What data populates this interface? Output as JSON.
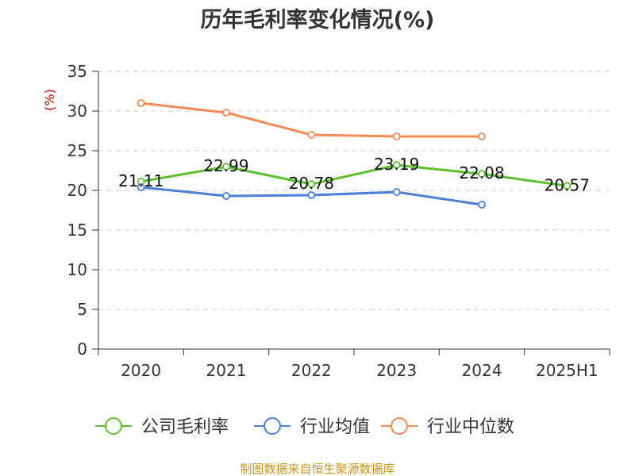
{
  "chart_data": {
    "type": "line",
    "title": "历年毛利率变化情况(%)",
    "ylabel": "(%)",
    "xlabel": "",
    "categories": [
      "2020",
      "2021",
      "2022",
      "2023",
      "2024",
      "2025H1"
    ],
    "ylim": [
      0,
      35
    ],
    "yticks": [
      0,
      5,
      10,
      15,
      20,
      25,
      30,
      35
    ],
    "grid": true,
    "legend_position": "bottom",
    "series": [
      {
        "name": "公司毛利率",
        "color": "#5cc02c",
        "values": [
          21.11,
          22.99,
          20.78,
          23.19,
          22.08,
          20.57
        ],
        "labels": [
          "21.11",
          "22.99",
          "20.78",
          "23.19",
          "22.08",
          "20.57"
        ]
      },
      {
        "name": "行业均值",
        "color": "#4a7fd8",
        "values": [
          20.4,
          19.3,
          19.4,
          19.8,
          18.2,
          null
        ],
        "labels": []
      },
      {
        "name": "行业中位数",
        "color": "#f48a55",
        "values": [
          31.0,
          29.8,
          27.0,
          26.8,
          26.8,
          null
        ],
        "labels": []
      }
    ]
  },
  "source": {
    "text": "制图数据来自恒生聚源数据库",
    "color": "#c9941a"
  },
  "colors": {
    "unit_label": "#cc0000",
    "axis": "#333333",
    "grid": "#cccccc"
  }
}
